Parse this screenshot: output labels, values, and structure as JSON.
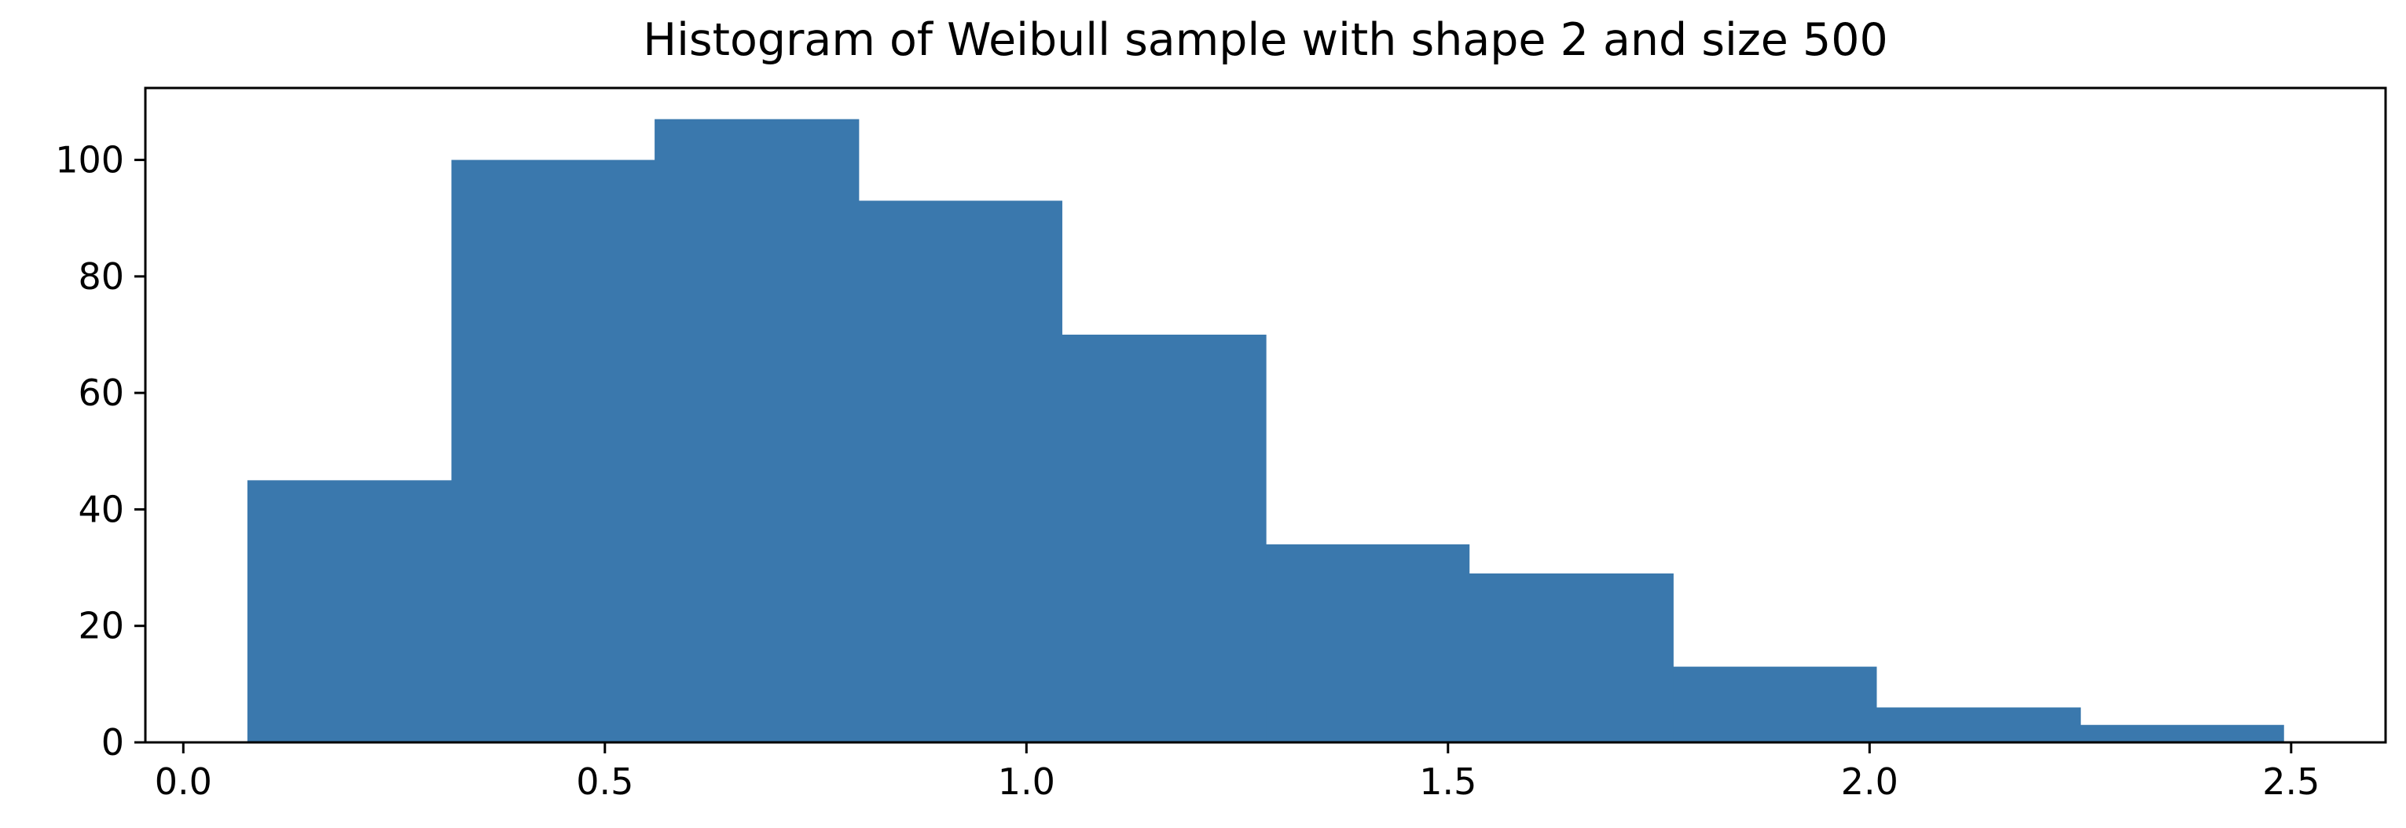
{
  "chart_data": {
    "type": "bar",
    "title": "Histogram of Weibull sample with shape 2 and size 500",
    "xlabel": "",
    "ylabel": "",
    "bin_edges": [
      0.076,
      0.318,
      0.559,
      0.801,
      1.042,
      1.284,
      1.525,
      1.767,
      2.008,
      2.25,
      2.491
    ],
    "values": [
      45,
      100,
      107,
      93,
      70,
      34,
      29,
      13,
      6,
      3
    ],
    "xlim": [
      -0.045,
      2.612
    ],
    "ylim": [
      0,
      112.35
    ],
    "x_ticks": [
      0.0,
      0.5,
      1.0,
      1.5,
      2.0,
      2.5
    ],
    "x_tick_labels": [
      "0.0",
      "0.5",
      "1.0",
      "1.5",
      "2.0",
      "2.5"
    ],
    "y_ticks": [
      0,
      20,
      40,
      60,
      80,
      100
    ],
    "y_tick_labels": [
      "0",
      "20",
      "40",
      "60",
      "80",
      "100"
    ],
    "bar_color": "#3a78ad",
    "grid": false,
    "legend": "none"
  }
}
